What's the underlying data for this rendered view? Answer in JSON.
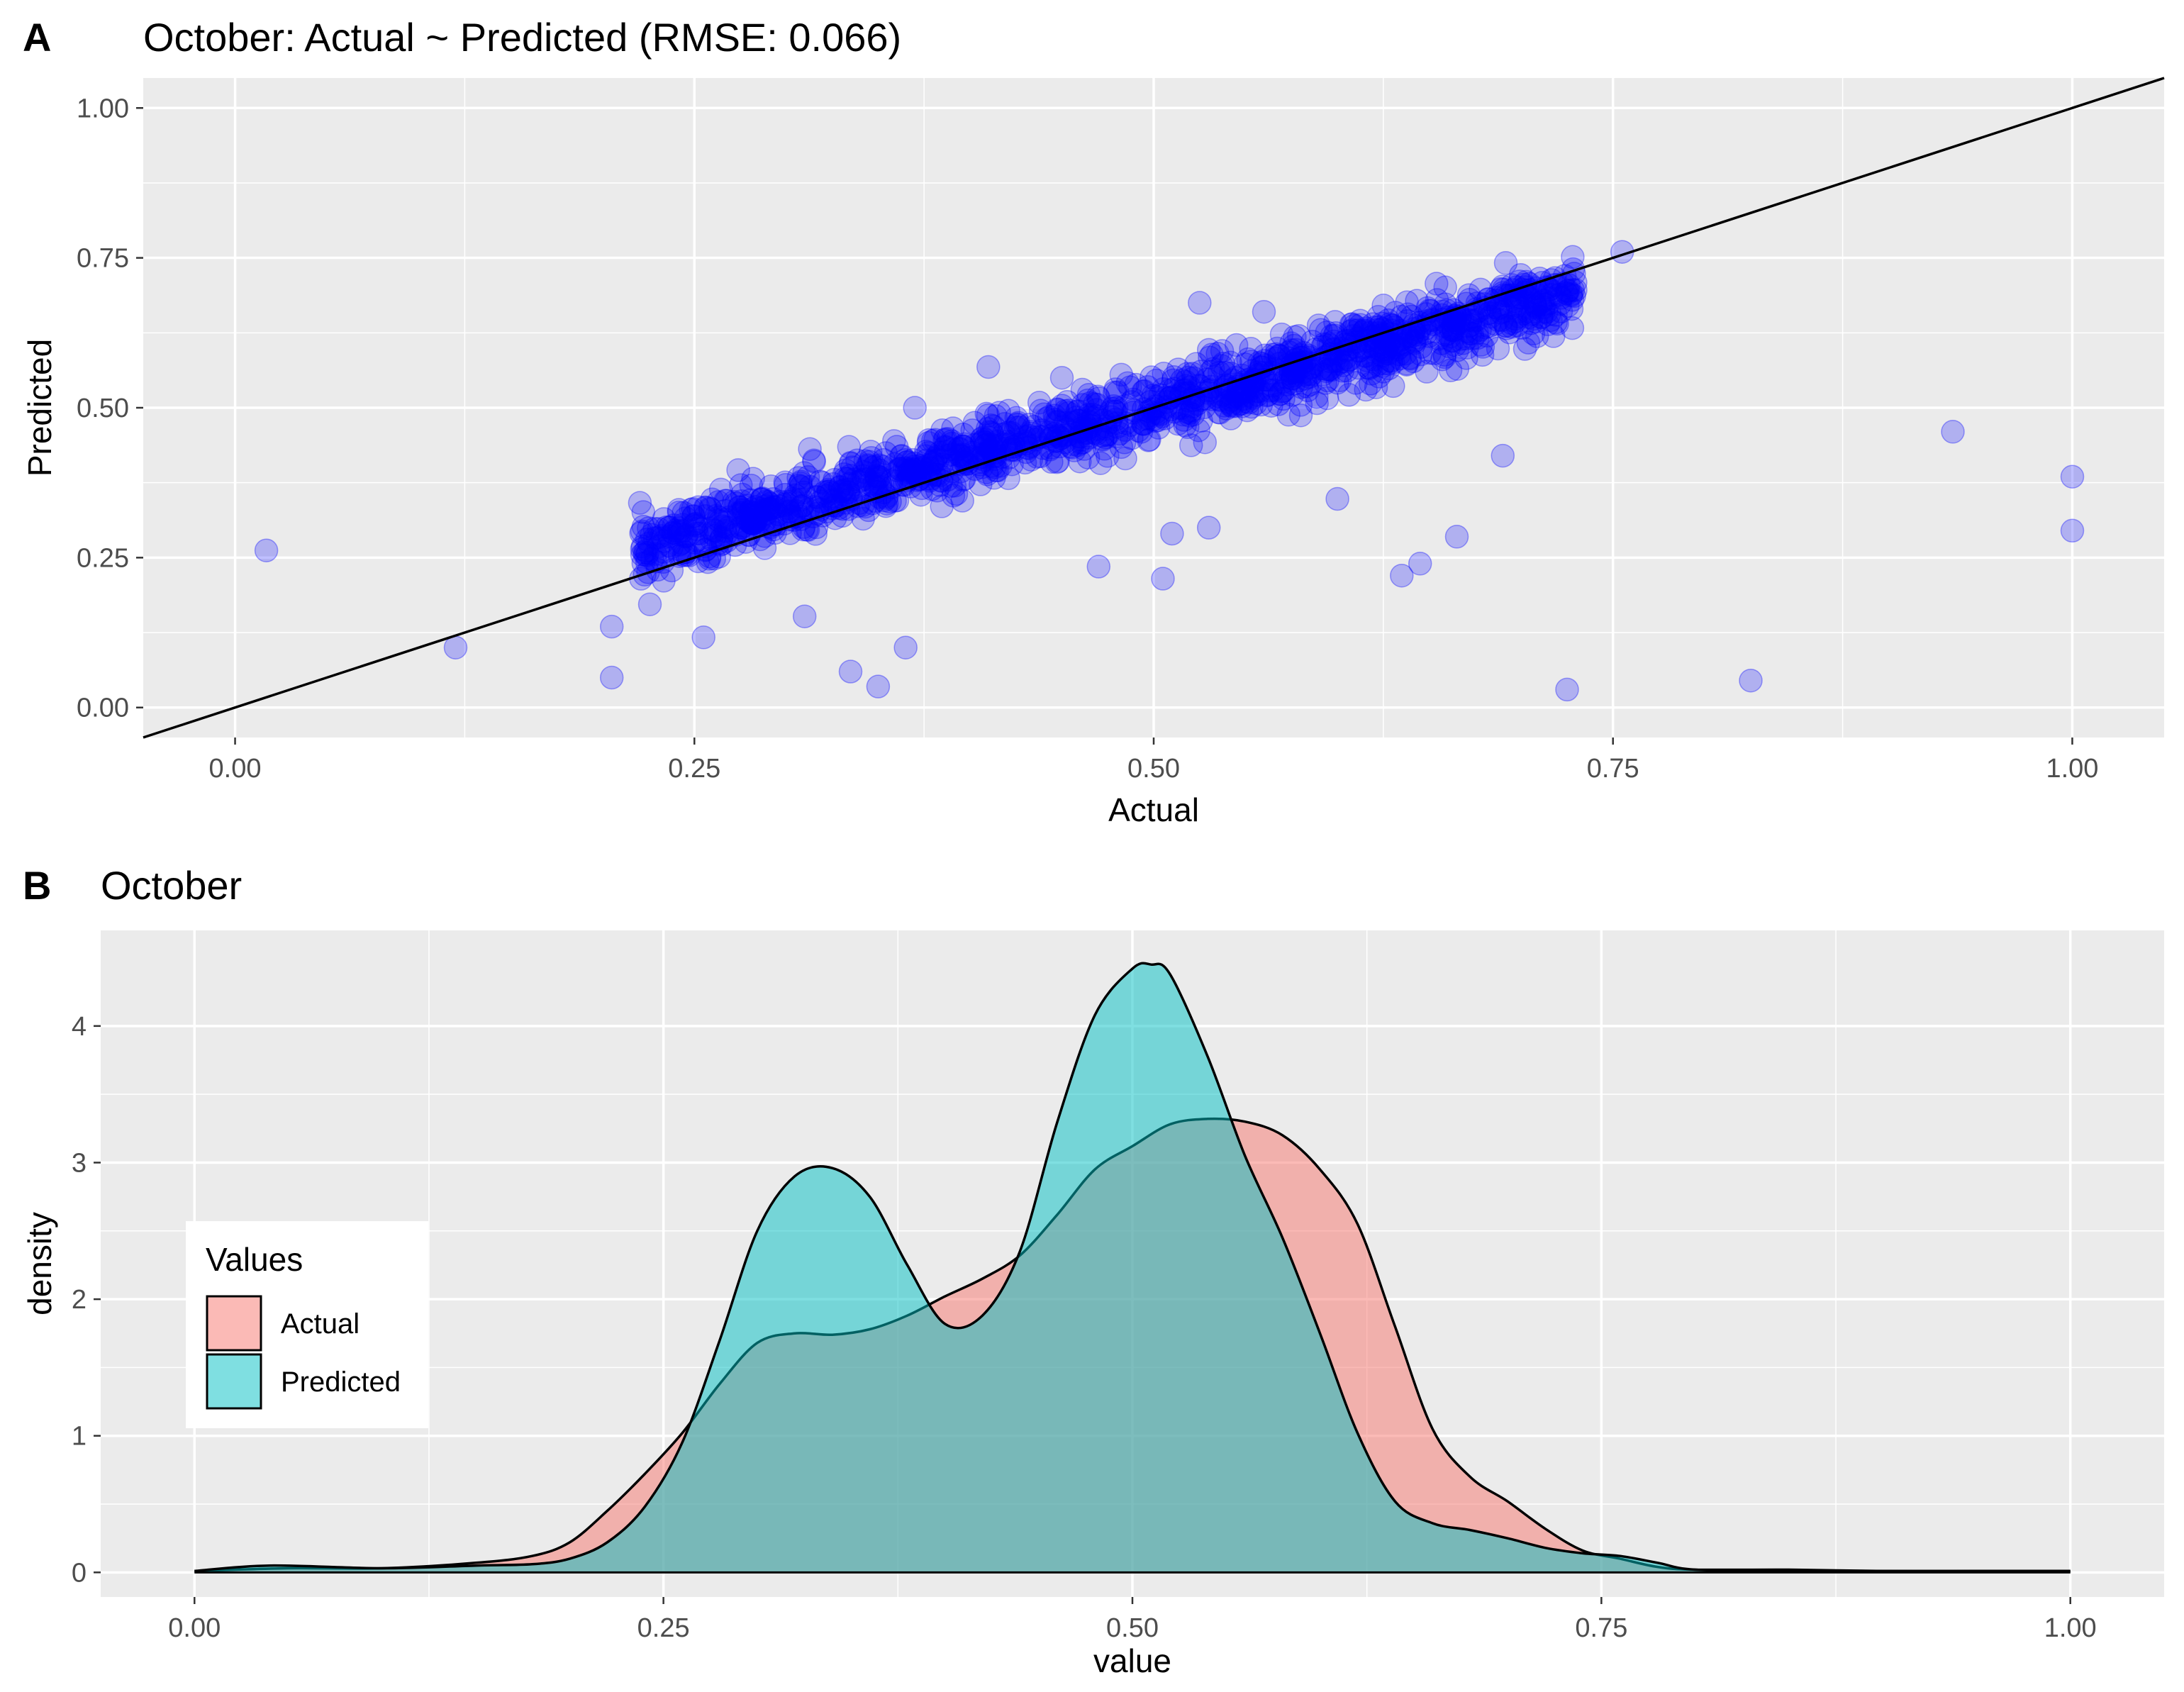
{
  "colors": {
    "panel_background": "#ebebeb",
    "grid": "#ffffff",
    "point": "#0000ff",
    "actual_fill": "#f8766d",
    "predicted_fill": "#00bfc4",
    "outline": "#000000"
  },
  "chart_data": [
    {
      "panel_tag": "A",
      "type": "scatter",
      "title": "October: Actual ~ Predicted (RMSE: 0.066)",
      "xlabel": "Actual",
      "ylabel": "Predicted",
      "xlim": [
        -0.05,
        1.05
      ],
      "ylim": [
        -0.05,
        1.05
      ],
      "xticks": [
        0.0,
        0.25,
        0.5,
        0.75,
        1.0
      ],
      "xtick_labels": [
        "0.00",
        "0.25",
        "0.50",
        "0.75",
        "1.00"
      ],
      "yticks": [
        0.0,
        0.25,
        0.5,
        0.75,
        1.0
      ],
      "ytick_labels": [
        "0.00",
        "0.25",
        "0.50",
        "0.75",
        "1.00"
      ],
      "grid": true,
      "point_alpha": 0.25,
      "reference_line": {
        "intercept": 0,
        "slope": 1
      },
      "outliers": [
        [
          0.017,
          0.262
        ],
        [
          0.12,
          0.1
        ],
        [
          0.205,
          0.135
        ],
        [
          0.205,
          0.05
        ],
        [
          0.255,
          0.117
        ],
        [
          0.31,
          0.152
        ],
        [
          0.335,
          0.06
        ],
        [
          0.35,
          0.035
        ],
        [
          0.365,
          0.1
        ],
        [
          0.37,
          0.5
        ],
        [
          0.41,
          0.568
        ],
        [
          0.45,
          0.55
        ],
        [
          0.47,
          0.235
        ],
        [
          0.505,
          0.215
        ],
        [
          0.51,
          0.29
        ],
        [
          0.525,
          0.675
        ],
        [
          0.53,
          0.3
        ],
        [
          0.56,
          0.66
        ],
        [
          0.6,
          0.348
        ],
        [
          0.635,
          0.22
        ],
        [
          0.645,
          0.24
        ],
        [
          0.665,
          0.285
        ],
        [
          0.69,
          0.42
        ],
        [
          0.725,
          0.03
        ],
        [
          0.755,
          0.76
        ],
        [
          0.825,
          0.045
        ],
        [
          0.935,
          0.46
        ],
        [
          1.0,
          0.385
        ],
        [
          1.0,
          0.295
        ]
      ],
      "bulk_description_points": [
        [
          0.22,
          0.35
        ],
        [
          0.24,
          0.34
        ],
        [
          0.26,
          0.35
        ],
        [
          0.3,
          0.39
        ],
        [
          0.32,
          0.42
        ],
        [
          0.35,
          0.38
        ],
        [
          0.4,
          0.43
        ],
        [
          0.45,
          0.47
        ],
        [
          0.5,
          0.51
        ],
        [
          0.55,
          0.53
        ],
        [
          0.6,
          0.57
        ],
        [
          0.62,
          0.63
        ],
        [
          0.65,
          0.66
        ],
        [
          0.68,
          0.7
        ],
        [
          0.7,
          0.72
        ],
        [
          0.72,
          0.77
        ]
      ]
    },
    {
      "panel_tag": "B",
      "type": "area",
      "title": "October",
      "xlabel": "value",
      "ylabel": "density",
      "xlim": [
        -0.05,
        1.05
      ],
      "ylim": [
        -0.18,
        4.7
      ],
      "xticks": [
        0.0,
        0.25,
        0.5,
        0.75,
        1.0
      ],
      "xtick_labels": [
        "0.00",
        "0.25",
        "0.50",
        "0.75",
        "1.00"
      ],
      "yticks": [
        0,
        1,
        2,
        3,
        4
      ],
      "ytick_labels": [
        "0",
        "1",
        "2",
        "3",
        "4"
      ],
      "grid": true,
      "legend": {
        "title": "Values",
        "position": "left",
        "entries": [
          "Actual",
          "Predicted"
        ]
      },
      "series": [
        {
          "name": "Actual",
          "x": [
            0.0,
            0.05,
            0.1,
            0.15,
            0.18,
            0.2,
            0.22,
            0.24,
            0.26,
            0.28,
            0.3,
            0.32,
            0.34,
            0.36,
            0.38,
            0.4,
            0.42,
            0.44,
            0.46,
            0.48,
            0.5,
            0.52,
            0.54,
            0.56,
            0.58,
            0.6,
            0.62,
            0.64,
            0.66,
            0.68,
            0.7,
            0.72,
            0.74,
            0.76,
            0.78,
            0.8,
            0.85,
            0.9,
            0.95,
            1.0
          ],
          "values": [
            0.01,
            0.03,
            0.03,
            0.07,
            0.12,
            0.22,
            0.45,
            0.72,
            1.02,
            1.38,
            1.68,
            1.75,
            1.74,
            1.78,
            1.88,
            2.02,
            2.15,
            2.32,
            2.62,
            2.95,
            3.12,
            3.28,
            3.32,
            3.3,
            3.2,
            2.95,
            2.55,
            1.8,
            1.05,
            0.7,
            0.52,
            0.32,
            0.16,
            0.1,
            0.04,
            0.02,
            0.02,
            0.01,
            0.01,
            0.01
          ]
        },
        {
          "name": "Predicted",
          "x": [
            0.0,
            0.04,
            0.1,
            0.15,
            0.18,
            0.2,
            0.22,
            0.24,
            0.26,
            0.28,
            0.3,
            0.32,
            0.34,
            0.36,
            0.38,
            0.4,
            0.42,
            0.44,
            0.46,
            0.48,
            0.5,
            0.51,
            0.52,
            0.54,
            0.56,
            0.58,
            0.6,
            0.62,
            0.64,
            0.66,
            0.68,
            0.7,
            0.72,
            0.74,
            0.76,
            0.78,
            0.8,
            0.85,
            0.9,
            0.95,
            1.0
          ],
          "values": [
            0.01,
            0.05,
            0.03,
            0.05,
            0.06,
            0.1,
            0.22,
            0.48,
            0.95,
            1.7,
            2.5,
            2.9,
            2.96,
            2.75,
            2.25,
            1.82,
            1.88,
            2.35,
            3.3,
            4.08,
            4.42,
            4.45,
            4.38,
            3.78,
            3.05,
            2.45,
            1.75,
            1.02,
            0.52,
            0.36,
            0.31,
            0.25,
            0.18,
            0.14,
            0.12,
            0.07,
            0.02,
            0.01,
            0.01,
            0.01,
            0.01
          ]
        }
      ]
    }
  ]
}
